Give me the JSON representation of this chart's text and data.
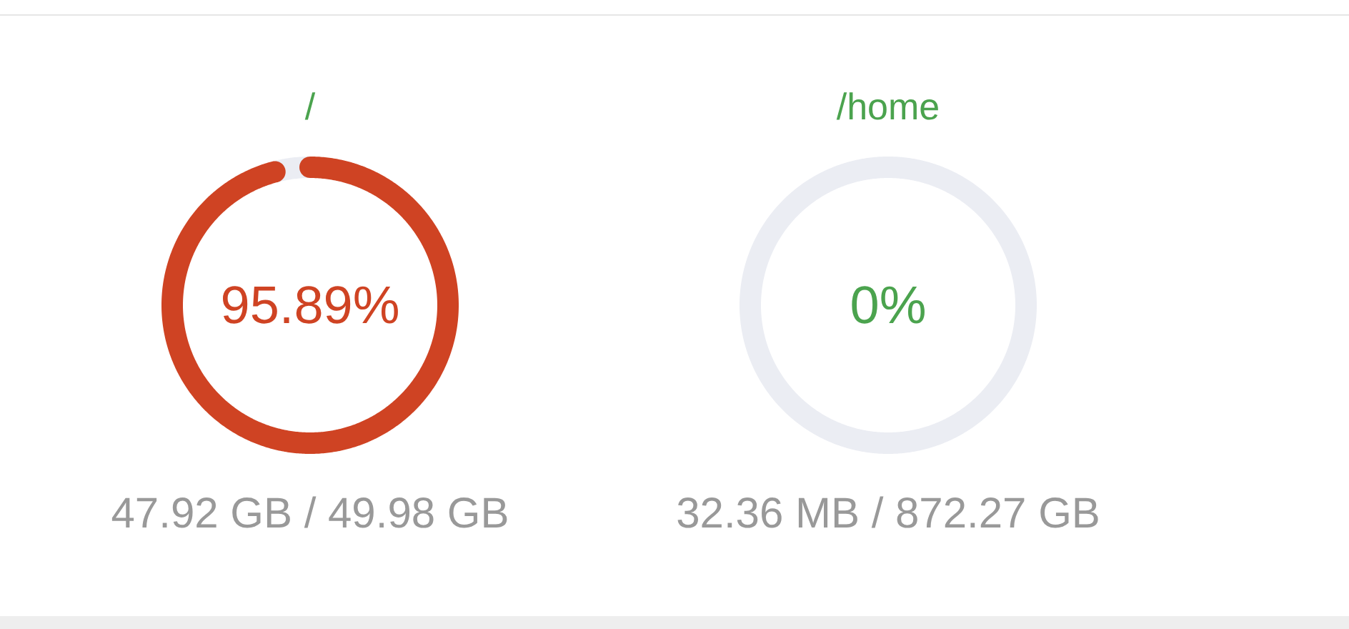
{
  "chart_data": [
    {
      "type": "donut",
      "title": "/",
      "categories": [
        null,
        null
      ],
      "values": [
        95.89,
        4.11
      ],
      "colors": [
        "#cf4323",
        "#ebedf3"
      ],
      "value_labels": [
        "95.89%",
        null
      ],
      "annotations": [
        "47.92 GB / 49.98 GB"
      ]
    },
    {
      "type": "donut",
      "title": "/home",
      "categories": [
        null,
        null
      ],
      "values": [
        0,
        100
      ],
      "colors": [
        "#4ba34e",
        "#ebedf3"
      ],
      "value_labels": [
        "0%",
        null
      ],
      "annotations": [
        "32.36 MB / 872.27 GB"
      ]
    }
  ]
}
